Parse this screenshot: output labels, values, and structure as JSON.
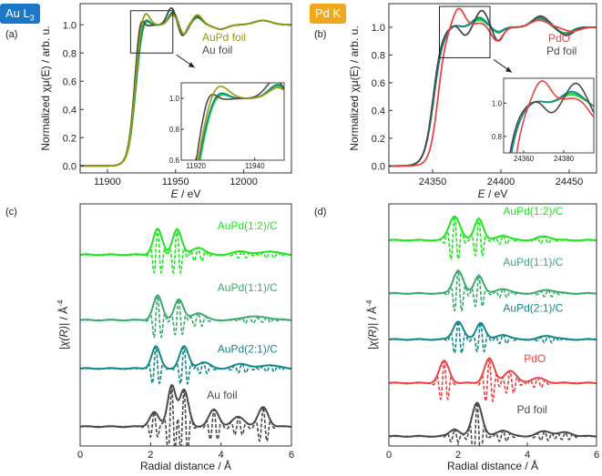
{
  "figure": {
    "badge_a": "Au L",
    "badge_a_sub": "3",
    "badge_b": "Pd K",
    "colors": {
      "bright_green": "#1ee61e",
      "mid_green": "#3aaa6e",
      "teal": "#128888",
      "dark_gray": "#4a4a4a",
      "olive": "#9a9a10",
      "red": "#e84545",
      "badge_blue": "#1b78c8",
      "badge_orange": "#f2a81d"
    }
  },
  "chart_data": [
    {
      "id": "a",
      "type": "line",
      "panel_label": "(a)",
      "xlabel_var": "E",
      "xlabel_unit": " / eV",
      "ylabel": "Normalized χμ(E) / arb. u.",
      "xlim": [
        11880,
        12035
      ],
      "ylim": [
        -0.05,
        1.15
      ],
      "xticks": [
        11900,
        11950,
        12000
      ],
      "yticks": [
        0.0,
        0.2,
        0.4,
        0.6,
        0.8,
        1.0
      ],
      "ytick_labels": [
        "0.0",
        "0.2",
        "0.4",
        "0.6",
        "0.8",
        "1.0"
      ],
      "zoom_box": {
        "x": [
          11917,
          11948
        ],
        "y": [
          0.8,
          1.1
        ]
      },
      "inset": {
        "xlim": [
          11915,
          11950
        ],
        "ylim": [
          0.6,
          1.1
        ],
        "xticks": [
          11920,
          11940
        ],
        "yticks": [
          0.6,
          0.8,
          1.0
        ],
        "ytick_labels": [
          "0.6",
          "0.8",
          "1.0"
        ]
      },
      "legend": [
        {
          "label": "AuPd foil",
          "color": "#9a9a10"
        },
        {
          "label": "Au foil",
          "color": "#4a4a4a"
        }
      ],
      "series": [
        {
          "name": "AuPd(1:2)/C",
          "color": "#1ee61e",
          "params": {
            "edge": 11920.5,
            "w": 2.6,
            "wl_a": 0.07,
            "wl_c": 11927,
            "wl_s": 4.5,
            "osc": [
              [
                0.08,
                11948,
                4.5
              ],
              [
                -0.07,
                11956,
                4
              ],
              [
                0.05,
                11966,
                5
              ],
              [
                -0.03,
                11983,
                7
              ],
              [
                0.03,
                12014,
                9
              ]
            ]
          }
        },
        {
          "name": "AuPd(1:1)/C",
          "color": "#3aaa6e",
          "params": {
            "edge": 11920.3,
            "w": 2.6,
            "wl_a": 0.075,
            "wl_c": 11927,
            "wl_s": 4.5,
            "osc": [
              [
                0.085,
                11948,
                4.5
              ],
              [
                -0.07,
                11956,
                4
              ],
              [
                0.05,
                11966,
                5
              ],
              [
                -0.03,
                11983,
                7
              ],
              [
                0.03,
                12014,
                9
              ]
            ]
          }
        },
        {
          "name": "AuPd(2:1)/C",
          "color": "#128888",
          "params": {
            "edge": 11920.2,
            "w": 2.6,
            "wl_a": 0.08,
            "wl_c": 11927,
            "wl_s": 4.5,
            "osc": [
              [
                0.09,
                11948,
                4.5
              ],
              [
                -0.07,
                11956,
                4
              ],
              [
                0.055,
                11966,
                5
              ],
              [
                -0.03,
                11983,
                7
              ],
              [
                0.03,
                12014,
                9
              ]
            ]
          }
        },
        {
          "name": "Au foil",
          "color": "#4a4a4a",
          "params": {
            "edge": 11919.5,
            "w": 2.4,
            "wl_a": 0.12,
            "wl_c": 11924,
            "wl_s": 3.5,
            "osc": [
              [
                0.12,
                11947,
                4.5
              ],
              [
                -0.08,
                11955,
                4
              ],
              [
                0.06,
                11966,
                5
              ],
              [
                -0.03,
                11983,
                7
              ],
              [
                0.03,
                12014,
                9
              ]
            ]
          }
        },
        {
          "name": "AuPd foil",
          "color": "#9a9a10",
          "params": {
            "edge": 11920,
            "w": 2.5,
            "wl_a": 0.12,
            "wl_c": 11927,
            "wl_s": 5,
            "osc": [
              [
                0.07,
                11948,
                4.5
              ],
              [
                -0.07,
                11956,
                4
              ],
              [
                0.07,
                11966,
                5
              ],
              [
                -0.03,
                11983,
                7
              ],
              [
                0.03,
                12014,
                9
              ]
            ]
          }
        }
      ]
    },
    {
      "id": "b",
      "type": "line",
      "panel_label": "(b)",
      "xlabel_var": "E",
      "xlabel_unit": " / eV",
      "ylabel": "Normalized χμ(E) / arb. u.",
      "xlim": [
        24318,
        24470
      ],
      "ylim": [
        -0.05,
        1.17
      ],
      "xticks": [
        24350,
        24400,
        24450
      ],
      "yticks": [
        0.0,
        0.2,
        0.4,
        0.6,
        0.8,
        1.0
      ],
      "ytick_labels": [
        "0.0",
        "0.2",
        "0.4",
        "0.6",
        "0.8",
        "1.0"
      ],
      "zoom_box": {
        "x": [
          24355,
          24392
        ],
        "y": [
          0.78,
          1.15
        ]
      },
      "inset": {
        "xlim": [
          24350,
          24395
        ],
        "ylim": [
          0.7,
          1.15
        ],
        "xticks": [
          24360,
          24380
        ],
        "yticks": [
          0.8,
          1.0
        ],
        "ytick_labels": [
          "0.8",
          "1.0"
        ]
      },
      "legend": [
        {
          "label": "PdO",
          "color": "#e84545"
        },
        {
          "label": "Pd foil",
          "color": "#4a4a4a"
        }
      ],
      "series": [
        {
          "name": "AuPd(1:2)/C",
          "color": "#1ee61e",
          "params": {
            "edge": 24351,
            "w": 3.4,
            "wl_a": 0.02,
            "wl_c": 24366,
            "wl_s": 5,
            "osc": [
              [
                0.05,
                24384,
                7
              ],
              [
                -0.03,
                24398,
                5
              ],
              [
                0.06,
                24428,
                8
              ],
              [
                -0.04,
                24447,
                7
              ]
            ]
          }
        },
        {
          "name": "AuPd(1:1)/C",
          "color": "#3aaa6e",
          "params": {
            "edge": 24351,
            "w": 3.4,
            "wl_a": 0.02,
            "wl_c": 24366,
            "wl_s": 5,
            "osc": [
              [
                0.06,
                24384,
                7
              ],
              [
                -0.035,
                24398,
                5
              ],
              [
                0.065,
                24428,
                8
              ],
              [
                -0.045,
                24447,
                7
              ]
            ]
          }
        },
        {
          "name": "AuPd(2:1)/C",
          "color": "#128888",
          "params": {
            "edge": 24351,
            "w": 3.4,
            "wl_a": 0.02,
            "wl_c": 24366,
            "wl_s": 5,
            "osc": [
              [
                0.07,
                24384,
                7
              ],
              [
                -0.04,
                24398,
                5
              ],
              [
                0.07,
                24428,
                8
              ],
              [
                -0.05,
                24447,
                7
              ]
            ]
          }
        },
        {
          "name": "Pd foil",
          "color": "#4a4a4a",
          "params": {
            "edge": 24350.5,
            "w": 3.2,
            "wl_a": 0.02,
            "wl_c": 24366,
            "wl_s": 5,
            "osc": [
              [
                -0.06,
                24374,
                5
              ],
              [
                0.12,
                24386,
                6
              ],
              [
                -0.1,
                24398,
                5
              ],
              [
                0.08,
                24429,
                8
              ],
              [
                -0.06,
                24448,
                7
              ]
            ]
          }
        },
        {
          "name": "PdO",
          "color": "#e84545",
          "params": {
            "edge": 24354,
            "w": 3.0,
            "wl_a": 0.14,
            "wl_c": 24369,
            "wl_s": 6,
            "osc": [
              [
                0.03,
                24385,
                8
              ],
              [
                -0.1,
                24397,
                6
              ],
              [
                0.05,
                24428,
                9
              ],
              [
                -0.03,
                24452,
                8
              ]
            ]
          }
        }
      ]
    },
    {
      "id": "c",
      "type": "line",
      "panel_label": "(c)",
      "xlabel": "Radial distance / Å",
      "ylabel_var": "|χ(R)|",
      "ylabel_unit": " / Å",
      "ylabel_exp": "-4",
      "xlim": [
        0,
        6
      ],
      "ylim": [
        0,
        10
      ],
      "xticks": [
        0,
        2,
        4,
        6
      ],
      "grid": false,
      "series": [
        {
          "name": "AuPd(1:2)/C",
          "color": "#1ee61e",
          "offset": 7.9,
          "label_at": [
            3.9,
            8.95
          ],
          "peaks": [
            [
              2.2,
              0.18,
              1.05
            ],
            [
              2.75,
              0.18,
              1.05
            ],
            [
              3.35,
              0.25,
              0.3
            ],
            [
              4.6,
              0.3,
              0.15
            ],
            [
              5.4,
              0.3,
              0.15
            ]
          ]
        },
        {
          "name": "AuPd(1:1)/C",
          "color": "#3aaa6e",
          "offset": 5.2,
          "label_at": [
            3.9,
            6.4
          ],
          "peaks": [
            [
              2.2,
              0.18,
              1.0
            ],
            [
              2.8,
              0.18,
              0.85
            ],
            [
              3.35,
              0.25,
              0.3
            ],
            [
              4.8,
              0.3,
              0.15
            ],
            [
              5.3,
              0.3,
              0.1
            ]
          ]
        },
        {
          "name": "AuPd(2:1)/C",
          "color": "#128888",
          "offset": 3.2,
          "label_at": [
            3.9,
            3.85
          ],
          "peaks": [
            [
              2.15,
              0.17,
              0.9
            ],
            [
              2.95,
              0.18,
              0.9
            ],
            [
              3.5,
              0.25,
              0.25
            ],
            [
              4.6,
              0.3,
              0.2
            ],
            [
              5.4,
              0.3,
              0.15
            ]
          ]
        },
        {
          "name": "Au foil",
          "color": "#4a4a4a",
          "offset": 0.8,
          "label_at": [
            3.6,
            1.95
          ],
          "peaks": [
            [
              2.1,
              0.18,
              0.6
            ],
            [
              2.6,
              0.16,
              1.7
            ],
            [
              2.95,
              0.18,
              1.5
            ],
            [
              3.8,
              0.2,
              0.7
            ],
            [
              4.5,
              0.25,
              0.4
            ],
            [
              5.2,
              0.2,
              0.8
            ]
          ]
        }
      ]
    },
    {
      "id": "d",
      "type": "line",
      "panel_label": "(d)",
      "xlabel": "Radial distance / Å",
      "ylabel_var": "|χ(R)|",
      "ylabel_unit": " / Å",
      "ylabel_exp": "-4",
      "xlim": [
        0,
        6
      ],
      "ylim": [
        0,
        10
      ],
      "xticks": [
        0,
        2,
        4,
        6
      ],
      "grid": false,
      "series": [
        {
          "name": "AuPd(1:2)/C",
          "color": "#1ee61e",
          "offset": 8.5,
          "label_at": [
            3.3,
            9.55
          ],
          "peaks": [
            [
              1.9,
              0.22,
              1.0
            ],
            [
              2.6,
              0.18,
              0.9
            ],
            [
              3.3,
              0.25,
              0.2
            ],
            [
              4.5,
              0.3,
              0.15
            ]
          ]
        },
        {
          "name": "AuPd(1:1)/C",
          "color": "#3aaa6e",
          "offset": 6.3,
          "label_at": [
            3.3,
            7.45
          ],
          "peaks": [
            [
              2.0,
              0.2,
              0.95
            ],
            [
              2.6,
              0.18,
              0.75
            ],
            [
              3.3,
              0.25,
              0.2
            ],
            [
              4.6,
              0.3,
              0.15
            ]
          ]
        },
        {
          "name": "AuPd(2:1)/C",
          "color": "#128888",
          "offset": 4.4,
          "label_at": [
            3.3,
            5.55
          ],
          "peaks": [
            [
              2.0,
              0.2,
              0.75
            ],
            [
              2.65,
              0.18,
              0.7
            ],
            [
              3.3,
              0.25,
              0.2
            ],
            [
              4.6,
              0.3,
              0.15
            ]
          ]
        },
        {
          "name": "PdO",
          "color": "#e84545",
          "offset": 2.6,
          "label_at": [
            3.9,
            3.45
          ],
          "peaks": [
            [
              1.6,
              0.2,
              0.9
            ],
            [
              2.9,
              0.2,
              1.0
            ],
            [
              3.5,
              0.25,
              0.5
            ],
            [
              4.3,
              0.3,
              0.2
            ]
          ]
        },
        {
          "name": "Pd foil",
          "color": "#4a4a4a",
          "offset": 0.4,
          "label_at": [
            3.7,
            1.35
          ],
          "peaks": [
            [
              1.9,
              0.2,
              0.3
            ],
            [
              2.55,
              0.2,
              1.4
            ],
            [
              3.3,
              0.25,
              0.25
            ],
            [
              4.5,
              0.3,
              0.2
            ],
            [
              5.1,
              0.3,
              0.15
            ]
          ]
        }
      ]
    }
  ]
}
